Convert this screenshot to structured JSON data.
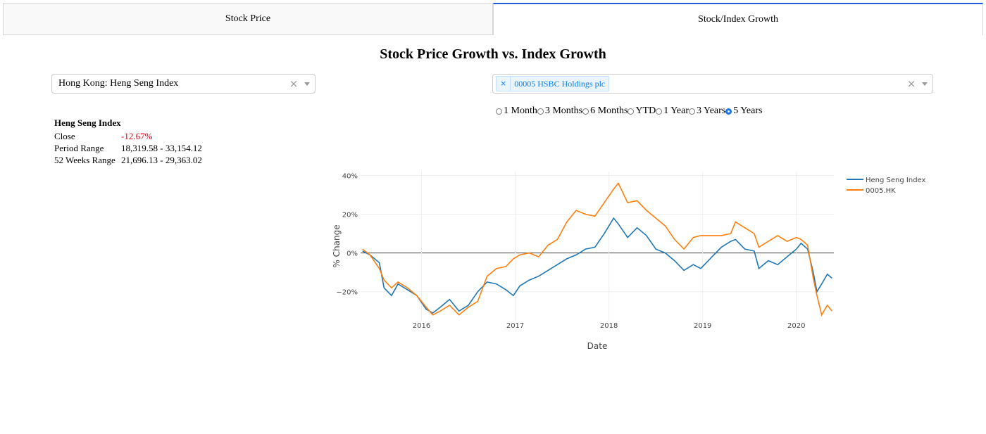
{
  "tabs": [
    {
      "label": "Stock Price",
      "active": false
    },
    {
      "label": "Stock/Index Growth",
      "active": true
    }
  ],
  "page_title": "Stock Price Growth vs. Index Growth",
  "index_dropdown": {
    "value": "Hong Kong: Heng Seng Index",
    "clear": "×"
  },
  "stock_dropdown": {
    "chip_remove": "×",
    "chip_label": "00005 HSBC Holdings plc",
    "clear": "×"
  },
  "period_options": {
    "options": [
      "1 Month",
      "3 Months",
      "6 Months",
      "YTD",
      "1 Year",
      "3 Years",
      "5 Years"
    ],
    "selected": "5 Years"
  },
  "stats": {
    "title": "Heng Seng Index",
    "rows": [
      {
        "label": "Close",
        "value": "-12.67%"
      },
      {
        "label": "Period Range",
        "value": "18,319.58 - 33,154.12"
      },
      {
        "label": "52 Weeks Range",
        "value": "21,696.13 - 29,363.02"
      }
    ]
  },
  "colors": {
    "index_line": "#1f77b4",
    "stock_line": "#ff7f0e",
    "negative": "#e3001b",
    "tab_accent": "#1f5fe0"
  },
  "chart_data": {
    "type": "line",
    "xlabel": "Date",
    "ylabel": "% Change",
    "x_ticks": [
      "2016",
      "2017",
      "2018",
      "2019",
      "2020"
    ],
    "y_ticks": [
      "40%",
      "20%",
      "0%",
      "−20%"
    ],
    "ylim": [
      -35,
      42
    ],
    "xlim": [
      2015.35,
      2020.4
    ],
    "legend_position": "top-right",
    "series": [
      {
        "name": "Heng Seng Index",
        "color": "#1f77b4",
        "points": [
          [
            2015.37,
            1
          ],
          [
            2015.45,
            -1
          ],
          [
            2015.55,
            -5
          ],
          [
            2015.6,
            -18
          ],
          [
            2015.68,
            -22
          ],
          [
            2015.75,
            -16
          ],
          [
            2015.85,
            -19
          ],
          [
            2015.95,
            -22
          ],
          [
            2016.05,
            -29
          ],
          [
            2016.12,
            -31
          ],
          [
            2016.2,
            -28
          ],
          [
            2016.3,
            -24
          ],
          [
            2016.4,
            -30
          ],
          [
            2016.5,
            -27
          ],
          [
            2016.6,
            -20
          ],
          [
            2016.7,
            -15
          ],
          [
            2016.8,
            -16
          ],
          [
            2016.9,
            -19
          ],
          [
            2016.98,
            -22
          ],
          [
            2017.05,
            -17
          ],
          [
            2017.15,
            -14
          ],
          [
            2017.25,
            -12
          ],
          [
            2017.35,
            -9
          ],
          [
            2017.45,
            -6
          ],
          [
            2017.55,
            -3
          ],
          [
            2017.65,
            -1
          ],
          [
            2017.75,
            2
          ],
          [
            2017.85,
            3
          ],
          [
            2017.95,
            10
          ],
          [
            2018.05,
            18
          ],
          [
            2018.1,
            15
          ],
          [
            2018.2,
            8
          ],
          [
            2018.3,
            13
          ],
          [
            2018.4,
            9
          ],
          [
            2018.5,
            2
          ],
          [
            2018.6,
            0
          ],
          [
            2018.7,
            -4
          ],
          [
            2018.8,
            -9
          ],
          [
            2018.9,
            -6
          ],
          [
            2018.98,
            -8
          ],
          [
            2019.1,
            -2
          ],
          [
            2019.2,
            3
          ],
          [
            2019.3,
            6
          ],
          [
            2019.35,
            7
          ],
          [
            2019.45,
            2
          ],
          [
            2019.55,
            1
          ],
          [
            2019.6,
            -8
          ],
          [
            2019.7,
            -4
          ],
          [
            2019.8,
            -6
          ],
          [
            2019.9,
            -2
          ],
          [
            2020.0,
            2
          ],
          [
            2020.05,
            5
          ],
          [
            2020.12,
            2
          ],
          [
            2020.18,
            -10
          ],
          [
            2020.22,
            -20
          ],
          [
            2020.27,
            -16
          ],
          [
            2020.33,
            -11
          ],
          [
            2020.38,
            -13
          ]
        ]
      },
      {
        "name": "0005.HK",
        "color": "#ff7f0e",
        "points": [
          [
            2015.37,
            2
          ],
          [
            2015.45,
            -1
          ],
          [
            2015.55,
            -8
          ],
          [
            2015.6,
            -14
          ],
          [
            2015.68,
            -18
          ],
          [
            2015.75,
            -15
          ],
          [
            2015.85,
            -18
          ],
          [
            2015.95,
            -22
          ],
          [
            2016.05,
            -28
          ],
          [
            2016.12,
            -32
          ],
          [
            2016.2,
            -30
          ],
          [
            2016.3,
            -27
          ],
          [
            2016.4,
            -32
          ],
          [
            2016.5,
            -28
          ],
          [
            2016.6,
            -25
          ],
          [
            2016.7,
            -12
          ],
          [
            2016.8,
            -8
          ],
          [
            2016.9,
            -7
          ],
          [
            2016.98,
            -3
          ],
          [
            2017.05,
            -1
          ],
          [
            2017.15,
            0
          ],
          [
            2017.25,
            -2
          ],
          [
            2017.35,
            4
          ],
          [
            2017.45,
            7
          ],
          [
            2017.55,
            16
          ],
          [
            2017.65,
            22
          ],
          [
            2017.75,
            20
          ],
          [
            2017.85,
            19
          ],
          [
            2017.95,
            26
          ],
          [
            2018.05,
            33
          ],
          [
            2018.1,
            36
          ],
          [
            2018.2,
            26
          ],
          [
            2018.3,
            27
          ],
          [
            2018.4,
            22
          ],
          [
            2018.5,
            18
          ],
          [
            2018.6,
            14
          ],
          [
            2018.7,
            7
          ],
          [
            2018.8,
            2
          ],
          [
            2018.9,
            8
          ],
          [
            2018.98,
            9
          ],
          [
            2019.1,
            9
          ],
          [
            2019.2,
            9
          ],
          [
            2019.3,
            10
          ],
          [
            2019.35,
            16
          ],
          [
            2019.45,
            13
          ],
          [
            2019.55,
            10
          ],
          [
            2019.6,
            3
          ],
          [
            2019.7,
            6
          ],
          [
            2019.8,
            9
          ],
          [
            2019.9,
            6
          ],
          [
            2020.0,
            8
          ],
          [
            2020.05,
            7
          ],
          [
            2020.12,
            4
          ],
          [
            2020.18,
            -13
          ],
          [
            2020.22,
            -22
          ],
          [
            2020.27,
            -32
          ],
          [
            2020.33,
            -27
          ],
          [
            2020.38,
            -30
          ]
        ]
      }
    ]
  }
}
